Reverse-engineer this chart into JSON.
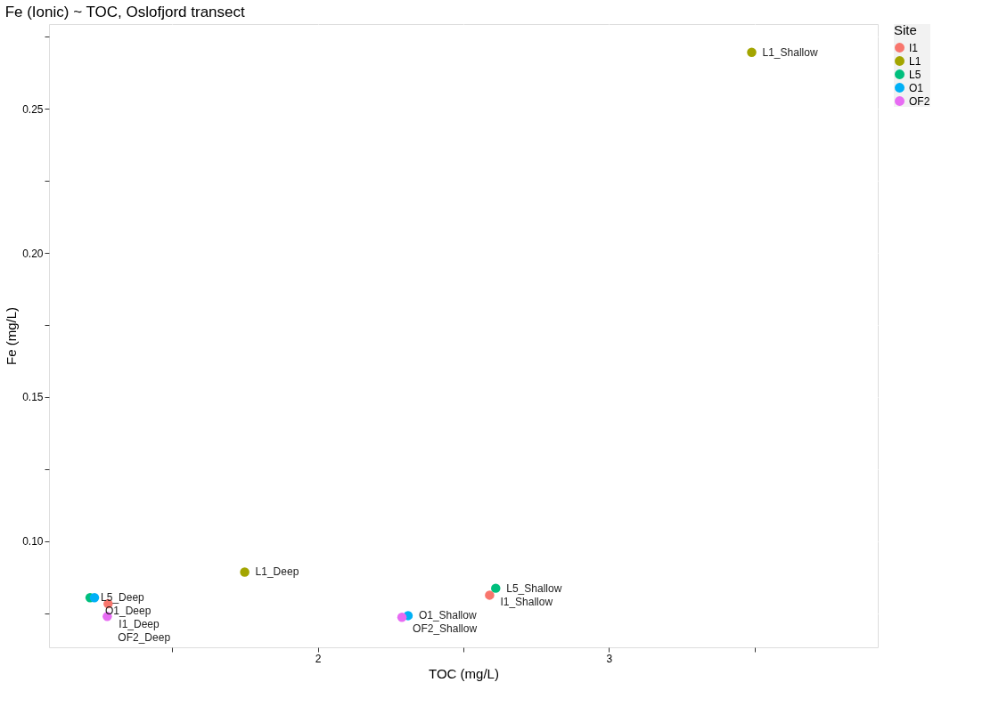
{
  "chart_data": {
    "type": "scatter",
    "title": "Fe (Ionic) ~ TOC, Oslofjord transect",
    "xlabel": "TOC (mg/L)",
    "ylabel": "Fe (mg/L)",
    "legend_title": "Site",
    "legend": "right",
    "grid": true,
    "marker": "circle",
    "xlim": [
      1.077,
      3.923
    ],
    "ylim": [
      0.0632,
      0.2794
    ],
    "xticks": [
      {
        "value": 1.5,
        "label": null
      },
      2,
      {
        "value": 2.5,
        "label": null
      },
      3,
      {
        "value": 3.5,
        "label": null
      }
    ],
    "yticks": [
      {
        "value": 0.075,
        "label": null
      },
      {
        "value": 0.1,
        "label": "0.10"
      },
      {
        "value": 0.125,
        "label": null
      },
      0.15,
      {
        "value": 0.175,
        "label": null
      },
      {
        "value": 0.2,
        "label": "0.20"
      },
      {
        "value": 0.225,
        "label": null
      },
      0.25,
      {
        "value": 0.275,
        "label": null
      }
    ],
    "series": [
      {
        "name": "I1",
        "color": "#f8766d",
        "x": [
          1.28,
          2.59
        ],
        "values": [
          0.0783,
          0.0813
        ]
      },
      {
        "name": "L1",
        "color": "#a3a500",
        "x": [
          1.749,
          3.49
        ],
        "values": [
          0.0893,
          0.2696
        ]
      },
      {
        "name": "L5",
        "color": "#00bf7d",
        "x": [
          1.218,
          2.611
        ],
        "values": [
          0.0804,
          0.0837
        ]
      },
      {
        "name": "O1",
        "color": "#00b0f6",
        "x": [
          1.233,
          2.31
        ],
        "values": [
          0.0804,
          0.0742
        ]
      },
      {
        "name": "OF2",
        "color": "#e76bf3",
        "x": [
          1.277,
          2.289
        ],
        "values": [
          0.0739,
          0.0736
        ]
      }
    ],
    "annotations": [
      {
        "text": "I1_Deep",
        "x": 1.28,
        "y": 0.0783
      },
      {
        "text": "I1_Shallow",
        "x": 2.59,
        "y": 0.0813
      },
      {
        "text": "L1_Deep",
        "x": 1.749,
        "y": 0.0893
      },
      {
        "text": "L1_Shallow",
        "x": 3.49,
        "y": 0.2696
      },
      {
        "text": "L5_Deep",
        "x": 1.218,
        "y": 0.0804
      },
      {
        "text": "L5_Shallow",
        "x": 2.611,
        "y": 0.0837
      },
      {
        "text": "O1_Deep",
        "x": 1.233,
        "y": 0.0804
      },
      {
        "text": "O1_Shallow",
        "x": 2.31,
        "y": 0.0742
      },
      {
        "text": "OF2_Deep",
        "x": 1.277,
        "y": 0.0739
      },
      {
        "text": "OF2_Shallow",
        "x": 2.289,
        "y": 0.0736
      }
    ]
  }
}
